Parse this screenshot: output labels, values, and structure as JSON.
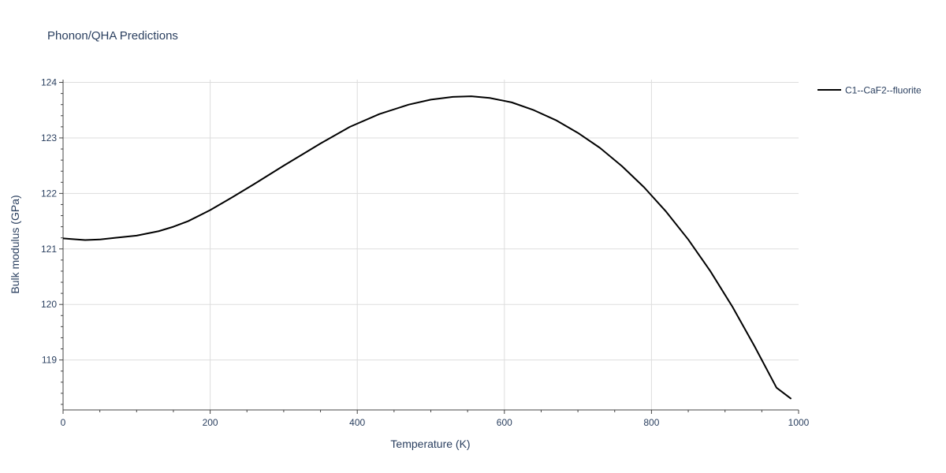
{
  "chart_data": {
    "type": "line",
    "title": "Phonon/QHA Predictions",
    "xlabel": "Temperature (K)",
    "ylabel": "Bulk modulus (GPa)",
    "xlim": [
      0,
      1000
    ],
    "ylim": [
      118.1,
      124.05
    ],
    "x_ticks": [
      0,
      200,
      400,
      600,
      800,
      1000
    ],
    "y_ticks": [
      119,
      120,
      121,
      122,
      123,
      124
    ],
    "x_minor_step": 50,
    "y_minor_step": 0.2,
    "grid": true,
    "legend_position": "top-right",
    "series": [
      {
        "name": "C1--CaF2--fluorite",
        "color": "#000000",
        "x": [
          0,
          10,
          30,
          50,
          70,
          100,
          130,
          150,
          170,
          200,
          230,
          260,
          300,
          350,
          390,
          430,
          470,
          500,
          530,
          555,
          580,
          610,
          640,
          670,
          700,
          730,
          760,
          790,
          820,
          850,
          880,
          910,
          940,
          970,
          990
        ],
        "y": [
          121.19,
          121.18,
          121.16,
          121.17,
          121.2,
          121.24,
          121.32,
          121.4,
          121.5,
          121.7,
          121.93,
          122.17,
          122.5,
          122.9,
          123.2,
          123.43,
          123.6,
          123.69,
          123.74,
          123.75,
          123.72,
          123.64,
          123.5,
          123.32,
          123.09,
          122.82,
          122.49,
          122.11,
          121.67,
          121.17,
          120.6,
          119.96,
          119.25,
          118.5,
          118.3
        ]
      }
    ]
  }
}
